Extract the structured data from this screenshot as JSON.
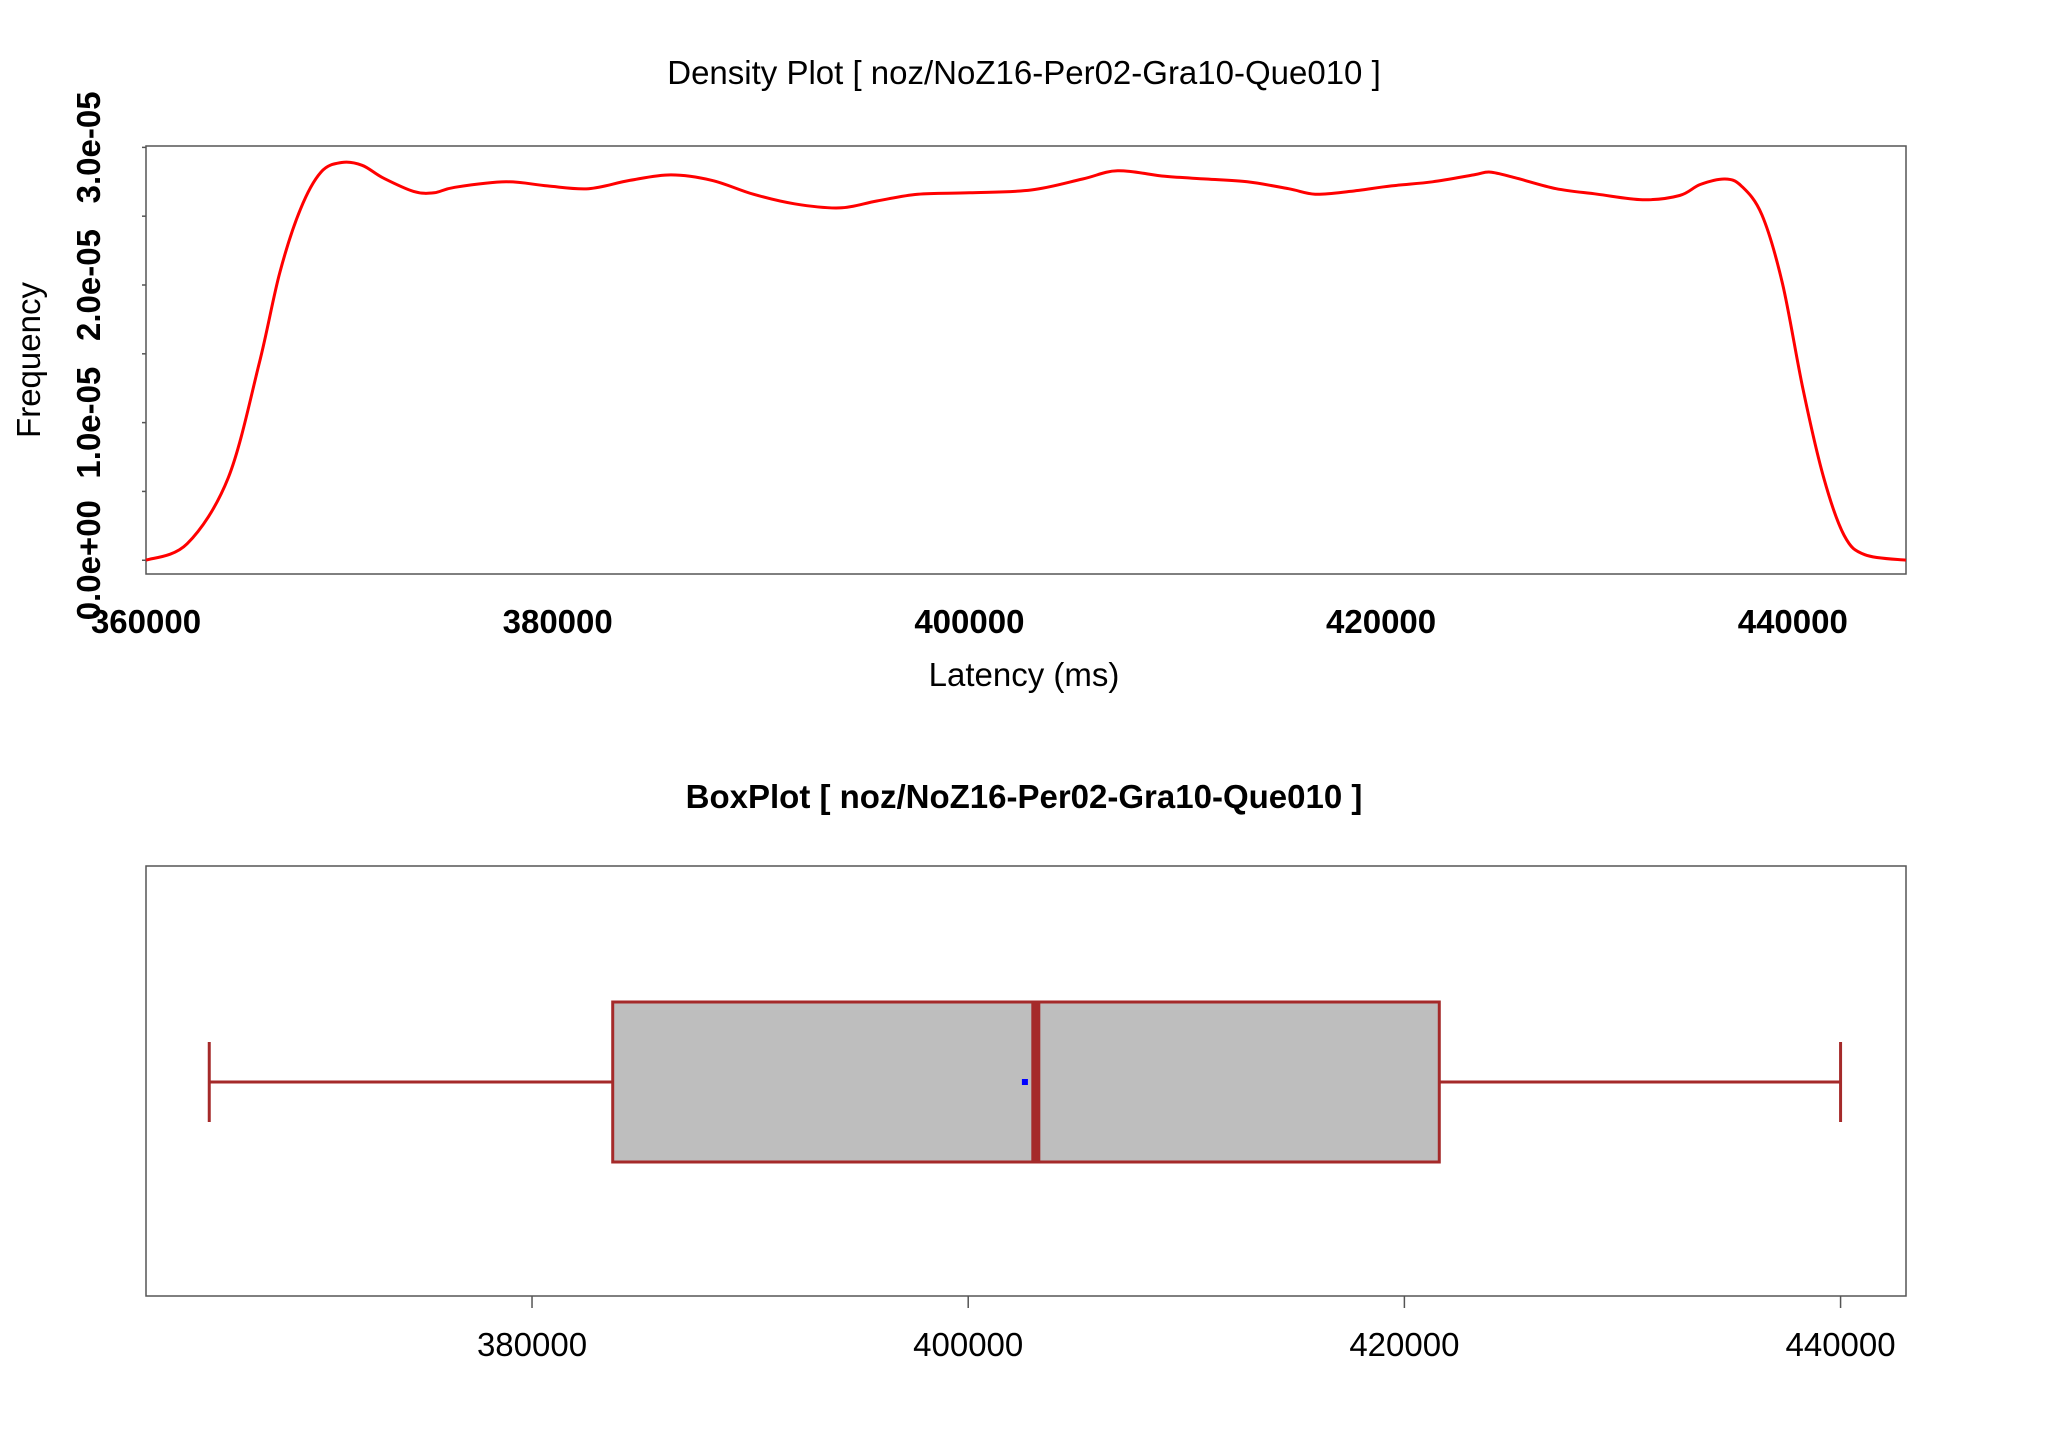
{
  "chart_data": [
    {
      "type": "line",
      "title": "Density Plot [ noz/NoZ16-Per02-Gra10-Que010 ]",
      "xlabel": "Latency (ms)",
      "ylabel": "Frequency",
      "xlim": [
        360000,
        445500
      ],
      "ylim": [
        -1e-06,
        3.01e-05
      ],
      "x_ticks": [
        360000,
        380000,
        400000,
        420000,
        440000
      ],
      "x_tick_labels": [
        "360000",
        "380000",
        "400000",
        "420000",
        "440000"
      ],
      "y_ticks": [
        0,
        5e-06,
        1e-05,
        1.5e-05,
        2e-05,
        2.5e-05,
        3e-05
      ],
      "y_tick_labels": [
        "0.0e+00",
        "",
        "1.0e-05",
        "",
        "2.0e-05",
        "",
        "3.0e-05"
      ],
      "grid": false,
      "series": [
        {
          "color": "#ff0000",
          "x": [
            360000,
            362000,
            364000,
            365500,
            366500,
            367500,
            368500,
            369500,
            370500,
            371500,
            373000,
            374000,
            375000,
            377500,
            379500,
            381500,
            383500,
            385500,
            387500,
            389500,
            391500,
            393700,
            395500,
            397500,
            400000,
            403000,
            405500,
            407200,
            409500,
            411500,
            413500,
            415500,
            416800,
            418500,
            420500,
            422500,
            424500,
            425300,
            426500,
            428500,
            430500,
            432700,
            434500,
            435500,
            436700,
            437500,
            438500,
            439500,
            440500,
            441500,
            442500,
            443500,
            445500
          ],
          "y": [
            0,
            1.2e-06,
            6e-06,
            1.43e-05,
            2.09e-05,
            2.55e-05,
            2.82e-05,
            2.89e-05,
            2.87e-05,
            2.78e-05,
            2.68e-05,
            2.67e-05,
            2.71e-05,
            2.75e-05,
            2.72e-05,
            2.7e-05,
            2.76e-05,
            2.8e-05,
            2.76e-05,
            2.66e-05,
            2.59e-05,
            2.56e-05,
            2.61e-05,
            2.66e-05,
            2.67e-05,
            2.69e-05,
            2.77e-05,
            2.83e-05,
            2.79e-05,
            2.77e-05,
            2.75e-05,
            2.7e-05,
            2.66e-05,
            2.68e-05,
            2.72e-05,
            2.75e-05,
            2.8e-05,
            2.82e-05,
            2.78e-05,
            2.7e-05,
            2.66e-05,
            2.62e-05,
            2.65e-05,
            2.73e-05,
            2.77e-05,
            2.72e-05,
            2.51e-05,
            2.01e-05,
            1.24e-05,
            6e-06,
            1.8e-06,
            4e-07,
            0
          ]
        }
      ]
    },
    {
      "type": "box",
      "title": "BoxPlot [ noz/NoZ16-Per02-Gra10-Que010 ]",
      "xlim": [
        362300,
        443000
      ],
      "x_ticks": [
        380000,
        400000,
        420000,
        440000
      ],
      "x_tick_labels": [
        "380000",
        "400000",
        "420000",
        "440000"
      ],
      "whisker_low": 365200,
      "q1": 383700,
      "median": 403100,
      "q3": 421600,
      "whisker_high": 440000,
      "mean": 402600,
      "box_color": "#bebebe",
      "line_color": "#a52a2a",
      "mean_color": "#0000ff"
    }
  ]
}
